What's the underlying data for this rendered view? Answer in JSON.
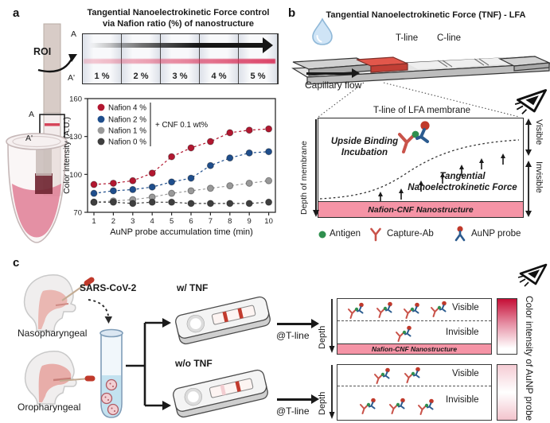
{
  "panel_a": {
    "label": "a",
    "roi_label": "ROI",
    "tube_marker_top": "A",
    "tube_marker_bottom": "A'",
    "panel_marker_top": "A",
    "panel_marker_bottom": "A'",
    "strip_title_line1": "Tangential Nanoelectrokinetic Force control",
    "strip_title_line2": "via Nafion ratio (%) of nanostructure",
    "strip_cells": [
      "1 %",
      "2 %",
      "3 %",
      "4 %",
      "5 %"
    ]
  },
  "chart_data": {
    "type": "scatter",
    "x": [
      1,
      2,
      3,
      4,
      5,
      6,
      7,
      8,
      9,
      10
    ],
    "series": [
      {
        "name": "Nafion 4 %",
        "color": "#b21730",
        "values": [
          92,
          93,
          95,
          101,
          114,
          121,
          126,
          133,
          135,
          136
        ]
      },
      {
        "name": "Nafion 2 %",
        "color": "#1f4e8c",
        "values": [
          85,
          87,
          88,
          90,
          94,
          97,
          107,
          113,
          117,
          118
        ]
      },
      {
        "name": "Nafion 1 %",
        "color": "#999999",
        "values": [
          78,
          79,
          80,
          82,
          85,
          87,
          89,
          91,
          93,
          95
        ]
      },
      {
        "name": "Nafion 0 %",
        "color": "#3f3f3f",
        "values": [
          78,
          78,
          77,
          78,
          78,
          77,
          77,
          77,
          77,
          78
        ]
      }
    ],
    "annotation": "+ CNF 0.1 wt%",
    "xlabel": "AuNP probe accumulation time (min)",
    "ylabel": "Color intensity (A.U.)",
    "ylim": [
      70,
      160
    ],
    "yticks": [
      70,
      100,
      130,
      160
    ],
    "line_style": "dashed",
    "legend_position": "upper-left"
  },
  "panel_b": {
    "label": "b",
    "title": "Tangential Nanoelectrokinetic Force (TNF) - LFA",
    "t_line": "T-line",
    "c_line": "C-line",
    "capillary_flow": "Capillary flow",
    "box_header": "T-line of LFA membrane",
    "depth_axis": "Depth of membrane",
    "upside_line1": "Upside Binding",
    "upside_line2": "Incubation",
    "tnf_line1": "Tangential",
    "tnf_line2": "Nanoelectrokinetic Force",
    "nanostructure": "Nafion-CNF Nanostructure",
    "visible": "Visible",
    "invisible": "Invisible",
    "legend": [
      {
        "label": "Antigen",
        "color": "#2f8f4e"
      },
      {
        "label": "Capture-Ab",
        "color": "#c9534a"
      },
      {
        "label": "AuNP probe",
        "color": "#2b5b8f"
      }
    ]
  },
  "panel_c": {
    "label": "c",
    "sources": [
      "Nasopharyngeal",
      "Oropharyngeal"
    ],
    "virus": "SARS-CoV-2",
    "at_t_line": "@T-line",
    "depth": "Depth",
    "visible": "Visible",
    "invisible": "Invisible",
    "nanostructure": "Nafion-CNF Nanostructure",
    "conditions": [
      {
        "name": "w/ TNF",
        "visible_count": 4,
        "invisible_count": 1,
        "has_nanostructure": true,
        "t_line_color": "#c23b2e",
        "c_line_color": "#c23b2e",
        "colorbar_gradient": [
          "#c50e36",
          "#e68fa4",
          "#ffffff"
        ]
      },
      {
        "name": "w/o TNF",
        "visible_count": 2,
        "invisible_count": 3,
        "has_nanostructure": false,
        "t_line_color": "#f3cdd1",
        "c_line_color": "#c23b2e",
        "colorbar_gradient": [
          "#f5ccd4",
          "#ffffff",
          "#f3c4cd"
        ]
      }
    ],
    "colorbar_label": "Color intensity of AuNP probe"
  }
}
